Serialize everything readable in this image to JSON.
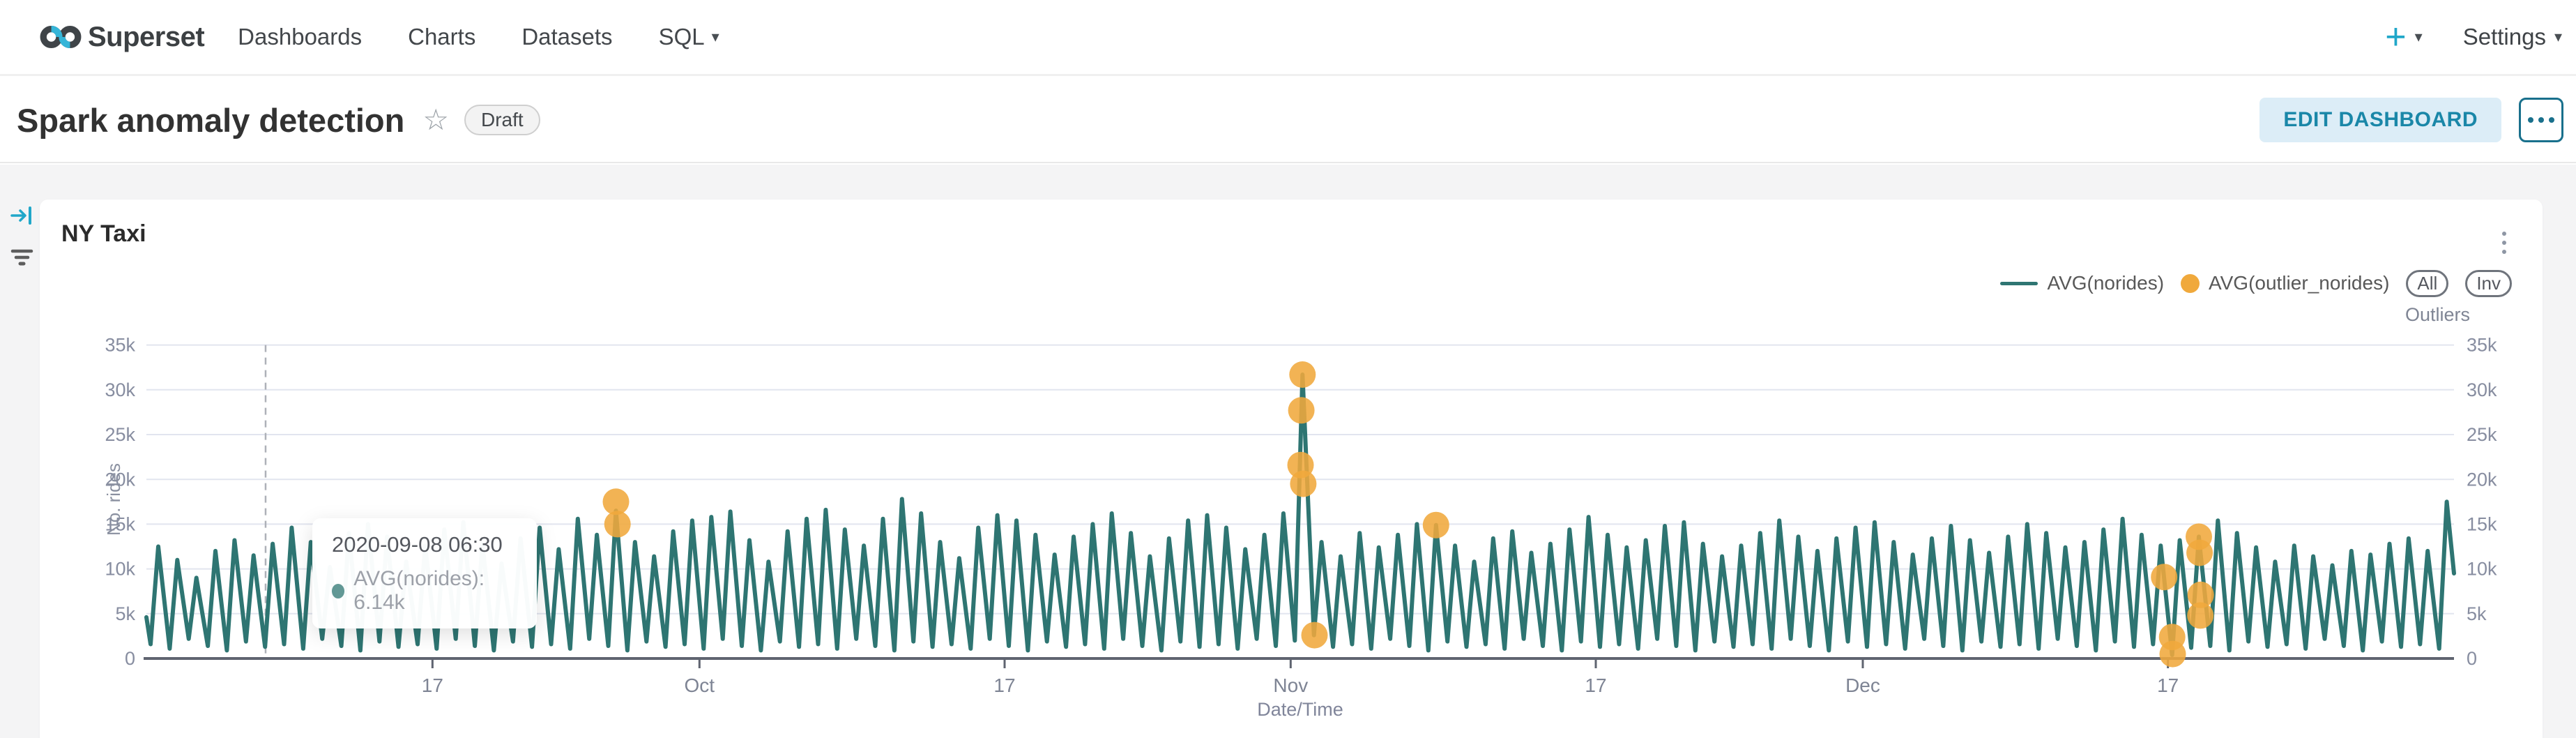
{
  "navbar": {
    "brand": "Superset",
    "items": [
      {
        "label": "Dashboards"
      },
      {
        "label": "Charts"
      },
      {
        "label": "Datasets"
      },
      {
        "label": "SQL"
      }
    ],
    "plus_label": "+",
    "settings_label": "Settings"
  },
  "icons": {
    "star": "☆",
    "caret_down": "▾"
  },
  "header": {
    "title": "Spark anomaly detection",
    "badge": "Draft",
    "edit_button": "EDIT DASHBOARD"
  },
  "colors": {
    "accent_teal": "#20a7c9",
    "line_teal": "#2e7572",
    "outlier_orange": "#f0a93c",
    "edit_button_bg": "#dcedf7",
    "edit_button_text": "#1a87a8",
    "gridline": "#e2e5ef",
    "axis": "#5f6470",
    "page_background": "#f4f4f5"
  },
  "chart_panel": {
    "title": "NY Taxi",
    "legend": [
      {
        "label": "AVG(norides)",
        "type": "line"
      },
      {
        "label": "AVG(outlier_norides)",
        "type": "circle"
      }
    ],
    "legend_buttons": [
      "All",
      "Inv"
    ],
    "right_axis_title": "Outliers",
    "tooltip": {
      "date": "2020-09-08 06:30",
      "series": "AVG(norides)",
      "value": "6.14k",
      "text": "AVG(norides): 6.14k",
      "anchor_day_offset": 6.25
    }
  },
  "chart_data": {
    "type": "line",
    "title": "NY Taxi",
    "xlabel": "Date/Time",
    "ylabel": "No. rides",
    "ylim": [
      0,
      35000
    ],
    "y_ticks": [
      "0",
      "5k",
      "10k",
      "15k",
      "20k",
      "25k",
      "30k",
      "35k"
    ],
    "x_range": [
      "2020-09-02",
      "2021-01-01"
    ],
    "x_domain_days": 121,
    "x_ticks": [
      {
        "day": 15,
        "label": "17"
      },
      {
        "day": 29,
        "label": "Oct"
      },
      {
        "day": 45,
        "label": "17"
      },
      {
        "day": 60,
        "label": "Nov"
      },
      {
        "day": 76,
        "label": "17"
      },
      {
        "day": 90,
        "label": "Dec"
      },
      {
        "day": 106,
        "label": "17"
      }
    ],
    "grid": true,
    "legend_position": "top-right",
    "series": [
      {
        "name": "AVG(norides)",
        "type": "line",
        "color": "#2e7572",
        "encoding": "two points per day (night trough at +0.22d, daily peak at +0.62d), values in thousands of rides",
        "start_k": 4.6,
        "end_k": 9.5,
        "daily_peaks_k": [
          12.5,
          11.0,
          9.0,
          12.0,
          13.2,
          11.5,
          12.8,
          14.6,
          13.0,
          10.2,
          14.0,
          15.0,
          13.6,
          10.8,
          12.6,
          14.4,
          15.2,
          12.8,
          10.6,
          13.4,
          14.6,
          12.2,
          15.6,
          13.8,
          16.5,
          13.0,
          11.4,
          14.2,
          15.4,
          15.8,
          16.4,
          13.2,
          10.8,
          14.2,
          15.6,
          16.6,
          14.4,
          12.6,
          15.6,
          17.8,
          16.2,
          13.0,
          11.2,
          14.6,
          16.0,
          15.4,
          13.8,
          11.6,
          13.6,
          15.0,
          16.2,
          14.0,
          11.4,
          13.4,
          15.4,
          16.0,
          14.6,
          12.2,
          13.8,
          16.2,
          31.7,
          13.0,
          11.4,
          14.0,
          12.4,
          13.8,
          15.0,
          14.9,
          12.6,
          10.8,
          13.4,
          14.2,
          11.8,
          12.8,
          14.4,
          15.8,
          13.8,
          12.4,
          13.2,
          14.8,
          15.2,
          12.8,
          11.4,
          12.6,
          14.0,
          15.4,
          13.6,
          12.0,
          13.4,
          14.6,
          15.2,
          13.0,
          11.6,
          13.4,
          14.8,
          13.2,
          11.8,
          13.6,
          15.0,
          14.0,
          12.4,
          13.0,
          14.4,
          15.6,
          13.8,
          12.6,
          13.2,
          13.6,
          15.4,
          14.0,
          12.4,
          10.8,
          12.6,
          11.4,
          10.4,
          12.0,
          11.6,
          12.8,
          13.4,
          12.0,
          17.5
        ],
        "daily_troughs_k": [
          1.6,
          1.1,
          2.2,
          1.4,
          0.9,
          1.9,
          1.3,
          1.6,
          1.1,
          2.2,
          1.4,
          0.9,
          1.9,
          1.3,
          1.6,
          1.1,
          2.2,
          1.4,
          0.9,
          1.9,
          1.3,
          1.6,
          1.1,
          2.2,
          1.4,
          0.9,
          1.9,
          1.3,
          1.6,
          1.1,
          2.2,
          1.4,
          0.9,
          1.9,
          1.3,
          1.6,
          1.1,
          2.2,
          1.4,
          0.9,
          1.9,
          1.3,
          1.6,
          1.1,
          2.2,
          1.4,
          0.9,
          1.9,
          1.3,
          1.6,
          1.1,
          2.2,
          1.4,
          0.9,
          1.9,
          1.3,
          1.6,
          1.1,
          2.2,
          1.4,
          2.0,
          2.6,
          1.3,
          1.6,
          1.1,
          2.2,
          1.4,
          0.9,
          1.9,
          1.3,
          1.6,
          1.1,
          2.2,
          1.4,
          0.9,
          1.9,
          1.3,
          1.6,
          1.1,
          2.2,
          1.4,
          0.9,
          1.9,
          1.3,
          1.6,
          1.1,
          2.2,
          1.4,
          0.9,
          1.9,
          1.3,
          1.6,
          1.1,
          2.2,
          1.4,
          0.9,
          1.9,
          1.3,
          1.6,
          1.1,
          2.2,
          1.4,
          0.9,
          1.9,
          1.3,
          1.6,
          0.4,
          1.2,
          1.4,
          0.9,
          1.9,
          1.3,
          1.6,
          1.1,
          2.2,
          1.4,
          0.9,
          1.9,
          1.3,
          1.6,
          1.1
        ]
      },
      {
        "name": "AVG(outlier_norides)",
        "type": "scatter",
        "color": "#f0a93c",
        "encoding": "points as [days since 2020-09-02, value in thousands]",
        "points": [
          [
            24.62,
            17.5
          ],
          [
            24.7,
            15.0
          ],
          [
            60.62,
            31.7
          ],
          [
            60.56,
            27.7
          ],
          [
            60.52,
            21.6
          ],
          [
            60.66,
            19.5
          ],
          [
            61.25,
            2.6
          ],
          [
            67.62,
            14.9
          ],
          [
            105.8,
            9.1
          ],
          [
            106.22,
            2.4
          ],
          [
            106.25,
            0.5
          ],
          [
            107.62,
            13.6
          ],
          [
            107.66,
            11.8
          ],
          [
            107.7,
            4.8
          ],
          [
            107.72,
            7.1
          ]
        ]
      }
    ]
  }
}
